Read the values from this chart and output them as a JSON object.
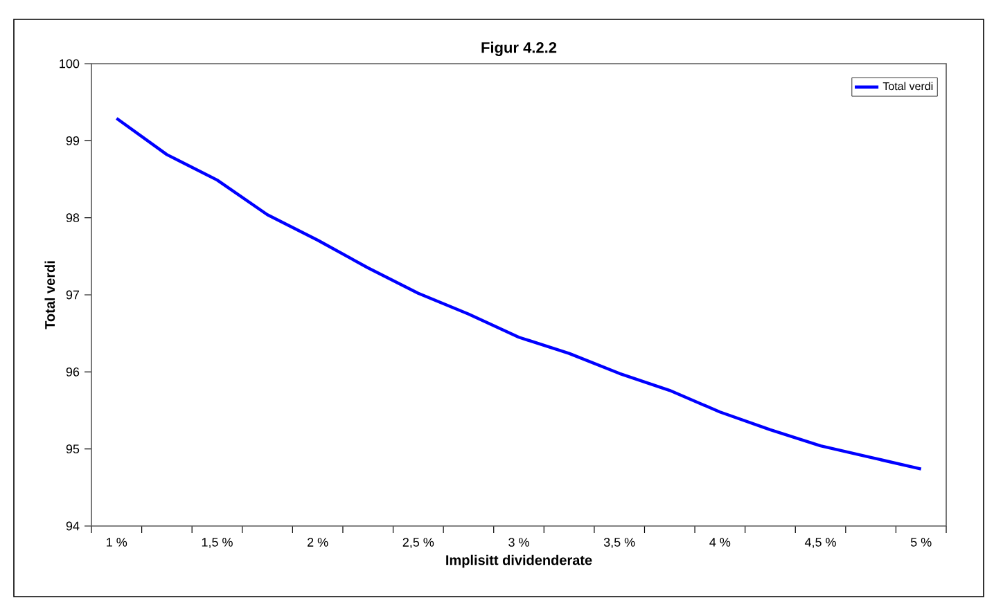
{
  "chart_data": {
    "type": "line",
    "title": "Figur 4.2.2",
    "xlabel": "Implisitt dividenderate",
    "ylabel": "Total verdi",
    "categories": [
      "1 %",
      null,
      "1,5 %",
      null,
      "2 %",
      null,
      "2,5 %",
      null,
      "3 %",
      null,
      "3,5 %",
      null,
      "4 %",
      null,
      "4,5 %",
      null,
      "5 %"
    ],
    "series": [
      {
        "name": "Total verdi",
        "color": "#0000ff",
        "values": [
          99.29,
          98.82,
          98.49,
          98.04,
          97.71,
          97.35,
          97.02,
          96.75,
          96.45,
          96.24,
          95.98,
          95.76,
          95.48,
          95.25,
          95.04,
          94.89,
          94.74
        ]
      }
    ],
    "ylim": [
      94,
      100
    ],
    "yticks": [
      94,
      95,
      96,
      97,
      98,
      99,
      100
    ],
    "grid": false,
    "legend": "top right",
    "marker": "none",
    "line_style": "solid"
  }
}
